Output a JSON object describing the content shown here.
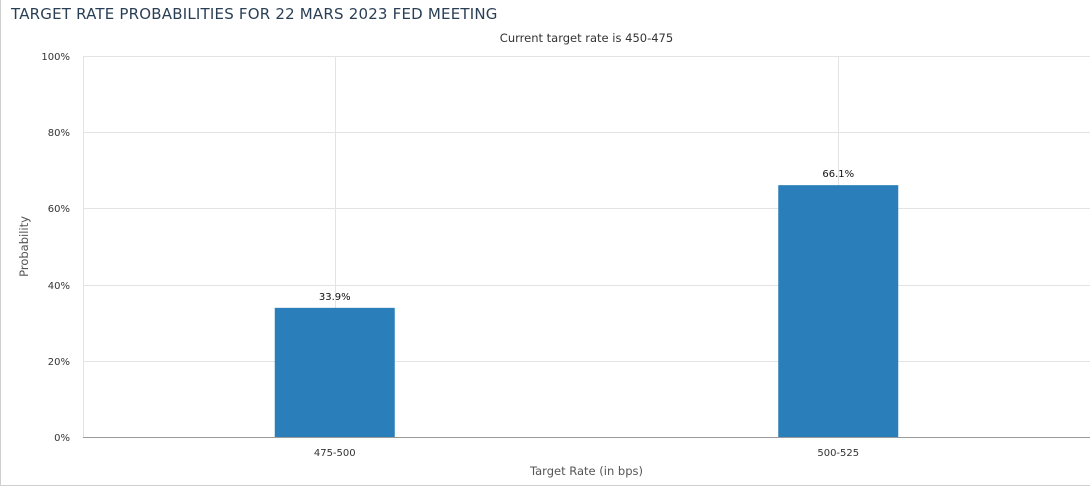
{
  "chart_data": {
    "type": "bar",
    "title": "TARGET RATE PROBABILITIES FOR 22 MARS 2023 FED MEETING",
    "subtitle": "Current target rate is 450-475",
    "xlabel": "Target Rate (in bps)",
    "ylabel": "Probability",
    "categories": [
      "475-500",
      "500-525"
    ],
    "values": [
      33.9,
      66.1
    ],
    "data_labels": [
      "33.9%",
      "66.1%"
    ],
    "ylim": [
      0,
      100
    ],
    "yticks": [
      0,
      20,
      40,
      60,
      80,
      100
    ],
    "ytick_labels": [
      "0%",
      "20%",
      "40%",
      "60%",
      "80%",
      "100%"
    ],
    "grid": true,
    "bar_color": "#2a7fba"
  }
}
